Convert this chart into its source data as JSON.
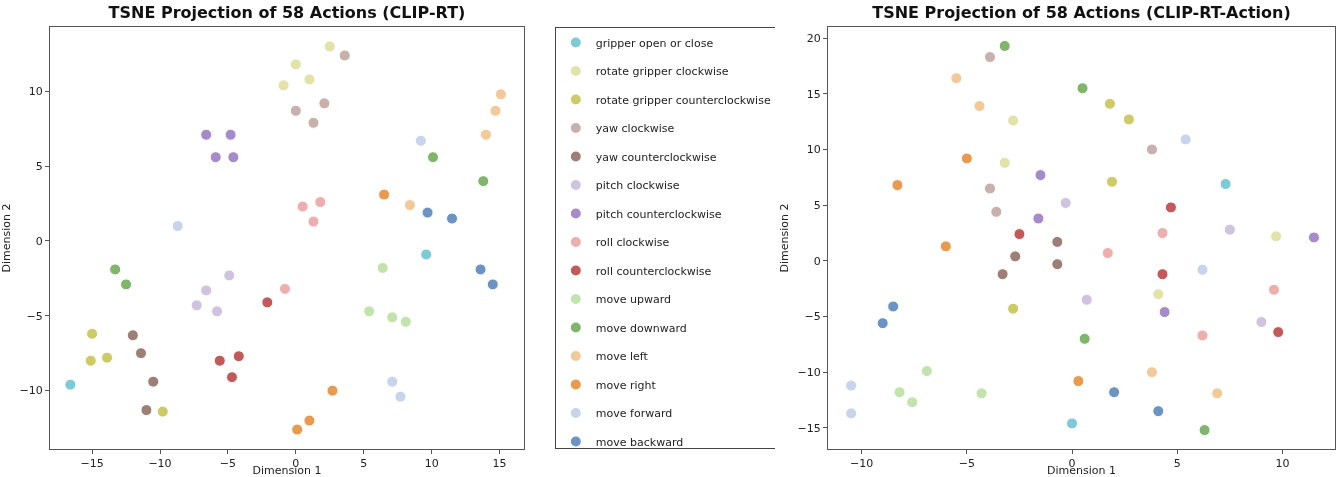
{
  "chart_data": [
    {
      "type": "scatter",
      "title": "TSNE Projection of 58 Actions (CLIP-RT)",
      "xlabel": "Dimension 1",
      "ylabel": "Dimension 2",
      "xlim": [
        -18.1,
        16.8
      ],
      "ylim": [
        -13.9,
        14.3
      ],
      "xticks": [
        {
          "value": -15,
          "label": "−15"
        },
        {
          "value": -10,
          "label": "−10"
        },
        {
          "value": -5,
          "label": "−5"
        },
        0,
        5,
        10,
        15
      ],
      "yticks": [
        {
          "value": -10,
          "label": "−10"
        },
        {
          "value": -5,
          "label": "−5"
        },
        0,
        5,
        10
      ],
      "grid": false,
      "legend": "right",
      "marker": "circle",
      "series": [
        {
          "name": "gripper open or close",
          "color": "#7ecbd8",
          "x": [
            -16.6,
            9.6
          ],
          "values": [
            -9.6,
            -0.9
          ]
        },
        {
          "name": "rotate gripper clockwise",
          "color": "#e3e2a8",
          "x": [
            2.5,
            0,
            1.0,
            -0.9
          ],
          "values": [
            13.0,
            11.8,
            10.8,
            10.4
          ]
        },
        {
          "name": "rotate gripper counterclockwise",
          "color": "#cccb66",
          "x": [
            -15,
            -15.1,
            -13.9,
            -9.8
          ],
          "values": [
            -6.2,
            -8.0,
            -7.8,
            -11.4
          ]
        },
        {
          "name": "yaw clockwise",
          "color": "#c7b1aa",
          "x": [
            3.6,
            0,
            2.1,
            1.3
          ],
          "values": [
            12.4,
            8.7,
            9.2,
            7.9
          ]
        },
        {
          "name": "yaw counterclockwise",
          "color": "#9e7f76",
          "x": [
            -12.0,
            -11.4,
            -10.5,
            -11.0
          ],
          "values": [
            -6.3,
            -7.5,
            -9.4,
            -11.3
          ]
        },
        {
          "name": "pitch clockwise",
          "color": "#cfc3e0",
          "x": [
            -4.9,
            -6.6,
            -7.3,
            -5.8
          ],
          "values": [
            -2.3,
            -3.3,
            -4.3,
            -4.7
          ]
        },
        {
          "name": "pitch counterclockwise",
          "color": "#a68bca",
          "x": [
            -6.6,
            -4.8,
            -5.9,
            -4.6
          ],
          "values": [
            7.1,
            7.1,
            5.6,
            5.6
          ]
        },
        {
          "name": "roll clockwise",
          "color": "#eeaead",
          "x": [
            0.5,
            1.8,
            1.3,
            -0.8
          ],
          "values": [
            2.3,
            2.6,
            1.3,
            -3.2
          ]
        },
        {
          "name": "roll counterclockwise",
          "color": "#c25a5a",
          "x": [
            -2.1,
            -5.6,
            -4.2,
            -4.7
          ],
          "values": [
            -4.1,
            -8.0,
            -7.7,
            -9.1
          ]
        },
        {
          "name": "move upward",
          "color": "#c3e3ad",
          "x": [
            6.4,
            5.4,
            7.1,
            8.1
          ],
          "values": [
            -1.8,
            -4.7,
            -5.1,
            -5.4
          ]
        },
        {
          "name": "move downward",
          "color": "#7fb66b",
          "x": [
            -13.3,
            -12.5,
            10.1,
            13.8
          ],
          "values": [
            -1.9,
            -2.9,
            5.6,
            4.0
          ]
        },
        {
          "name": "move left",
          "color": "#f2c998",
          "x": [
            15.1,
            14.7,
            14.0,
            8.4
          ],
          "values": [
            9.8,
            8.7,
            7.1,
            2.4
          ]
        },
        {
          "name": "move right",
          "color": "#e89a4e",
          "x": [
            6.5,
            2.7,
            1.0,
            0.1
          ],
          "values": [
            3.1,
            -10.0,
            -12.0,
            -12.6
          ]
        },
        {
          "name": "move forward",
          "color": "#c6d4ec",
          "x": [
            -8.7,
            9.2,
            7.1,
            7.7
          ],
          "values": [
            1.0,
            6.7,
            -9.4,
            -10.4
          ]
        },
        {
          "name": "move backward",
          "color": "#6b94c2",
          "x": [
            9.7,
            11.5,
            13.6,
            14.5
          ],
          "values": [
            1.9,
            1.5,
            -1.9,
            -2.9
          ]
        }
      ]
    },
    {
      "type": "scatter",
      "title": "TSNE Projection of 58 Actions (CLIP-RT-Action)",
      "xlabel": "Dimension 1",
      "ylabel": "Dimension 2",
      "xlim": [
        -11.6,
        12.5
      ],
      "ylim": [
        -16.9,
        21.0
      ],
      "xticks": [
        {
          "value": -10,
          "label": "−10"
        },
        {
          "value": -5,
          "label": "−5"
        },
        0,
        5,
        10
      ],
      "yticks": [
        {
          "value": -15,
          "label": "−15"
        },
        {
          "value": -10,
          "label": "−10"
        },
        {
          "value": -5,
          "label": "−5"
        },
        0,
        5,
        10,
        15,
        20
      ],
      "grid": false,
      "legend": false,
      "marker": "circle",
      "series": [
        {
          "color": "#7ecbd8",
          "x": [
            7.3,
            0
          ],
          "values": [
            6.9,
            -14.6
          ]
        },
        {
          "color": "#e3e2a8",
          "x": [
            -2.8,
            -3.2,
            9.7,
            4.1
          ],
          "values": [
            12.6,
            8.8,
            2.2,
            -3.0
          ]
        },
        {
          "color": "#cccb66",
          "x": [
            1.8,
            2.7,
            1.9,
            -2.8
          ],
          "values": [
            14.1,
            12.7,
            7.1,
            -4.3
          ]
        },
        {
          "color": "#c7b1aa",
          "x": [
            -3.9,
            3.8,
            -3.9,
            -3.6
          ],
          "values": [
            18.3,
            10.0,
            6.5,
            4.4
          ]
        },
        {
          "color": "#9e7f76",
          "x": [
            -0.7,
            -2.7,
            -3.3,
            -0.7
          ],
          "values": [
            1.7,
            0.4,
            -1.2,
            -0.3
          ]
        },
        {
          "color": "#cfc3e0",
          "x": [
            -0.3,
            7.5,
            0.7,
            9.0
          ],
          "values": [
            5.2,
            2.8,
            -3.5,
            -5.5
          ]
        },
        {
          "color": "#a68bca",
          "x": [
            -1.5,
            -1.6,
            11.5,
            4.4
          ],
          "values": [
            7.7,
            3.8,
            2.1,
            -4.6
          ]
        },
        {
          "color": "#eeaead",
          "x": [
            4.3,
            1.7,
            9.6,
            6.2
          ],
          "values": [
            2.5,
            0.7,
            -2.6,
            -6.7
          ]
        },
        {
          "color": "#c25a5a",
          "x": [
            4.7,
            -2.5,
            4.3,
            9.8
          ],
          "values": [
            4.8,
            2.4,
            -1.2,
            -6.4
          ]
        },
        {
          "color": "#c3e3ad",
          "x": [
            -6.9,
            -8.2,
            -7.6,
            -4.3
          ],
          "values": [
            -9.9,
            -11.8,
            -12.7,
            -11.9
          ]
        },
        {
          "color": "#7fb66b",
          "x": [
            -3.2,
            0.5,
            0.6,
            6.3
          ],
          "values": [
            19.3,
            15.5,
            -7.0,
            -15.2
          ]
        },
        {
          "color": "#f2c998",
          "x": [
            -5.5,
            -4.4,
            3.8,
            6.9
          ],
          "values": [
            16.4,
            13.9,
            -10.0,
            -11.9
          ]
        },
        {
          "color": "#e89a4e",
          "x": [
            -8.3,
            -5.0,
            -6.0,
            0.3
          ],
          "values": [
            6.8,
            9.2,
            1.3,
            -10.8
          ]
        },
        {
          "color": "#c6d4ec",
          "x": [
            -10.5,
            -10.5,
            5.4,
            6.2
          ],
          "values": [
            -11.2,
            -13.7,
            10.9,
            -0.8
          ]
        },
        {
          "color": "#6b94c2",
          "x": [
            -8.5,
            -9.0,
            2.0,
            4.1
          ],
          "values": [
            -4.1,
            -5.6,
            -11.8,
            -13.5
          ]
        }
      ]
    }
  ]
}
